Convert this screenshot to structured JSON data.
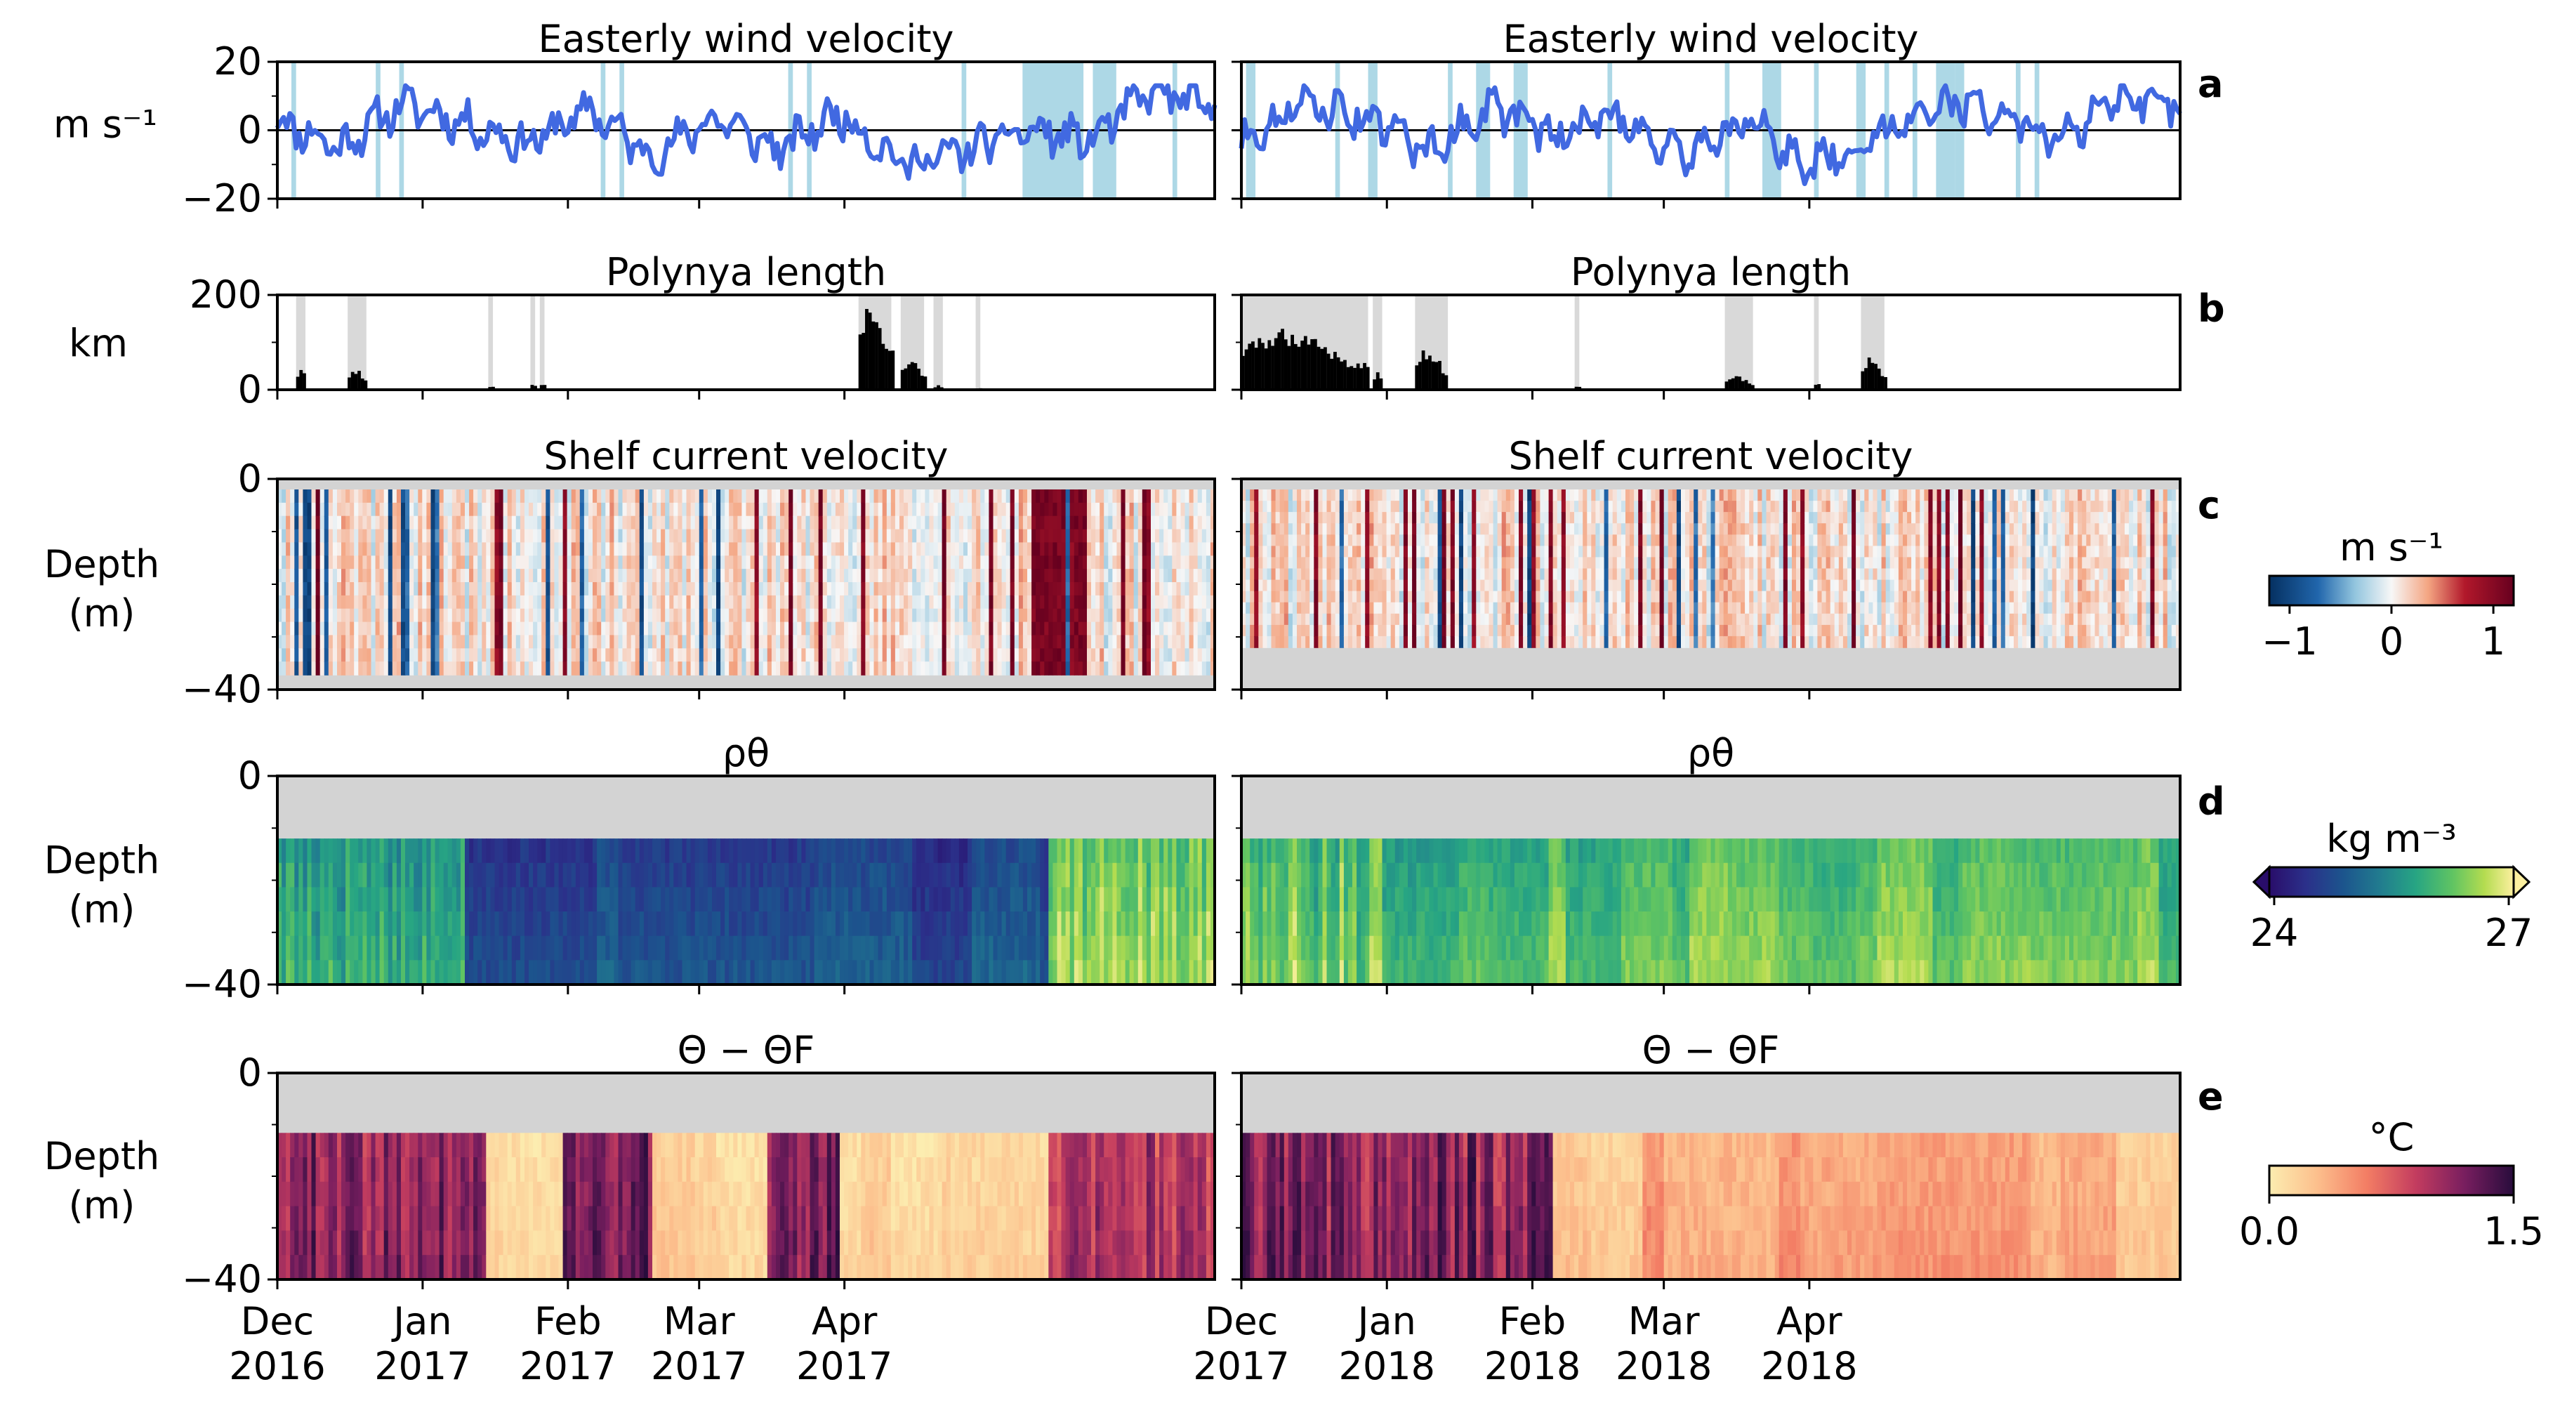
{
  "colors": {
    "wind_line": "#4169e1",
    "wind_shade": "#add8e6",
    "polynya_bar": "#000000",
    "polynya_shade": "#d9d9d9",
    "missing": "#d3d3d3"
  },
  "panel_labels": [
    "a",
    "b",
    "c",
    "d",
    "e"
  ],
  "row_titles": {
    "wind": "Easterly wind velocity",
    "polynya": "Polynya length",
    "current": "Shelf current velocity",
    "density": "ρθ",
    "thermal": "Θ − ΘF"
  },
  "row_ylabels": {
    "wind": "m s⁻¹",
    "polynya": "km",
    "current": [
      "Depth",
      "(m)"
    ],
    "density": [
      "Depth",
      "(m)"
    ],
    "thermal": [
      "Depth",
      "(m)"
    ]
  },
  "ytick_labels": {
    "wind": [
      "20",
      "0",
      "−20"
    ],
    "polynya": [
      "200",
      "0"
    ],
    "depth": [
      "0",
      "−40"
    ]
  },
  "colorbars": {
    "current": {
      "label": "m s⁻¹",
      "ticks": [
        "−1",
        "0",
        "1"
      ],
      "colormap": "RdBu_r",
      "range": [
        -1.2,
        1.2
      ]
    },
    "density": {
      "label": "kg m⁻³",
      "ticks": [
        "24",
        "27"
      ],
      "colormap": "viridis",
      "range": [
        24,
        27
      ],
      "extend": "both"
    },
    "thermal": {
      "label": "°C",
      "ticks": [
        "0.0",
        "1.5"
      ],
      "colormap": "magma_r",
      "range": [
        0,
        1.5
      ]
    }
  },
  "chart_data": [
    {
      "type": "line",
      "title": "Easterly wind velocity",
      "ylabel": "m s⁻¹",
      "ylim": [
        -20,
        20
      ],
      "xlim": [
        "2016-12-01",
        "2017-04-30"
      ],
      "x_ticks": [
        "Dec 2016",
        "Jan 2017",
        "Feb 2017",
        "Mar 2017",
        "Apr 2017"
      ],
      "series": [
        {
          "values_days": [
            0,
            10,
            20,
            30,
            40,
            50,
            60,
            70,
            80,
            90,
            100,
            110,
            120,
            130,
            140,
            150
          ],
          "values": [
            3,
            -5,
            8,
            2,
            -4,
            6,
            -8,
            4,
            -6,
            5,
            -10,
            -6,
            0,
            -3,
            12,
            6
          ]
        }
      ],
      "shaded_days": [
        [
          3,
          4
        ],
        [
          21,
          22
        ],
        [
          26,
          27
        ],
        [
          69,
          70
        ],
        [
          73,
          74
        ],
        [
          109,
          110
        ],
        [
          113,
          114
        ],
        [
          146,
          147
        ],
        [
          159,
          172
        ],
        [
          174,
          179
        ],
        [
          191,
          192
        ]
      ]
    },
    {
      "type": "line",
      "title": "Easterly wind velocity",
      "ylabel": "m s⁻¹",
      "ylim": [
        -20,
        20
      ],
      "xlim": [
        "2017-12-01",
        "2018-04-30"
      ],
      "x_ticks": [
        "Dec 2017",
        "Jan 2018",
        "Feb 2018",
        "Mar 2018",
        "Apr 2018"
      ],
      "series": [
        {
          "values_days": [
            0,
            10,
            20,
            30,
            40,
            50,
            60,
            70,
            80,
            90,
            100,
            110,
            120,
            130,
            140,
            150
          ],
          "values": [
            -3,
            8,
            4,
            -6,
            7,
            -2,
            5,
            -8,
            3,
            -10,
            -4,
            8,
            6,
            -4,
            9,
            7
          ]
        }
      ],
      "shaded_days": [
        [
          1,
          3
        ],
        [
          20,
          21
        ],
        [
          27,
          29
        ],
        [
          44,
          45
        ],
        [
          50,
          53
        ],
        [
          58,
          61
        ],
        [
          78,
          79
        ],
        [
          103,
          104
        ],
        [
          111,
          115
        ],
        [
          122,
          123
        ],
        [
          131,
          133
        ],
        [
          137,
          138
        ],
        [
          143,
          144
        ],
        [
          148,
          152
        ],
        [
          152,
          154
        ],
        [
          165,
          166
        ],
        [
          169,
          170
        ]
      ]
    },
    {
      "type": "bar",
      "title": "Polynya length",
      "ylabel": "km",
      "ylim": [
        0,
        200
      ],
      "xlim": [
        "2016-12-01",
        "2017-04-30"
      ],
      "events": [
        {
          "start_day": 4,
          "end_day": 6,
          "max_km": 50
        },
        {
          "start_day": 15,
          "end_day": 19,
          "max_km": 45
        },
        {
          "start_day": 45,
          "end_day": 46,
          "max_km": 10
        },
        {
          "start_day": 54,
          "end_day": 55,
          "max_km": 15
        },
        {
          "start_day": 56,
          "end_day": 57,
          "max_km": 20
        },
        {
          "start_day": 124,
          "end_day": 131,
          "max_km": 190
        },
        {
          "start_day": 133,
          "end_day": 138,
          "max_km": 70
        },
        {
          "start_day": 140,
          "end_day": 142,
          "max_km": 10
        },
        {
          "start_day": 149,
          "end_day": 150,
          "max_km": 5
        }
      ]
    },
    {
      "type": "bar",
      "title": "Polynya length",
      "ylabel": "km",
      "ylim": [
        0,
        200
      ],
      "xlim": [
        "2017-12-01",
        "2018-04-30"
      ],
      "events": [
        {
          "start_day": 0,
          "end_day": 27,
          "max_km": 130
        },
        {
          "start_day": 28,
          "end_day": 30,
          "max_km": 40
        },
        {
          "start_day": 37,
          "end_day": 44,
          "max_km": 90
        },
        {
          "start_day": 71,
          "end_day": 72,
          "max_km": 10
        },
        {
          "start_day": 103,
          "end_day": 109,
          "max_km": 30
        },
        {
          "start_day": 122,
          "end_day": 123,
          "max_km": 20
        },
        {
          "start_day": 132,
          "end_day": 137,
          "max_km": 70
        }
      ]
    },
    {
      "type": "heatmap",
      "title": "Shelf current velocity",
      "ylabel": "Depth (m)",
      "ylim": [
        -40,
        0
      ],
      "colorbar": "m s⁻¹",
      "value_range": [
        -1.2,
        1.2
      ],
      "xlim": [
        "2016-12-01",
        "2017-04-30"
      ]
    },
    {
      "type": "heatmap",
      "title": "Shelf current velocity",
      "ylabel": "Depth (m)",
      "ylim": [
        -40,
        0
      ],
      "colorbar": "m s⁻¹",
      "value_range": [
        -1.2,
        1.2
      ],
      "xlim": [
        "2017-12-01",
        "2018-04-30"
      ]
    },
    {
      "type": "heatmap",
      "title": "ρθ",
      "ylabel": "Depth (m)",
      "ylim": [
        -40,
        0
      ],
      "colorbar": "kg m⁻³",
      "value_range": [
        24,
        27
      ],
      "xlim": [
        "2016-12-01",
        "2017-04-30"
      ]
    },
    {
      "type": "heatmap",
      "title": "ρθ",
      "ylabel": "Depth (m)",
      "ylim": [
        -40,
        0
      ],
      "colorbar": "kg m⁻³",
      "value_range": [
        24,
        27
      ],
      "xlim": [
        "2017-12-01",
        "2018-04-30"
      ]
    },
    {
      "type": "heatmap",
      "title": "Θ − ΘF",
      "ylabel": "Depth (m)",
      "ylim": [
        -40,
        0
      ],
      "colorbar": "°C",
      "value_range": [
        0,
        1.5
      ],
      "xlim": [
        "2016-12-01",
        "2017-04-30"
      ]
    },
    {
      "type": "heatmap",
      "title": "Θ − ΘF",
      "ylabel": "Depth (m)",
      "ylim": [
        -40,
        0
      ],
      "colorbar": "°C",
      "value_range": [
        0,
        1.5
      ],
      "xlim": [
        "2017-12-01",
        "2018-04-30"
      ]
    }
  ],
  "x_tick_labels_left": [
    [
      "Dec",
      "2016"
    ],
    [
      "Jan",
      "2017"
    ],
    [
      "Feb",
      "2017"
    ],
    [
      "Mar",
      "2017"
    ],
    [
      "Apr",
      "2017"
    ]
  ],
  "x_tick_labels_right": [
    [
      "Dec",
      "2017"
    ],
    [
      "Jan",
      "2018"
    ],
    [
      "Feb",
      "2018"
    ],
    [
      "Mar",
      "2018"
    ],
    [
      "Apr",
      "2018"
    ]
  ]
}
